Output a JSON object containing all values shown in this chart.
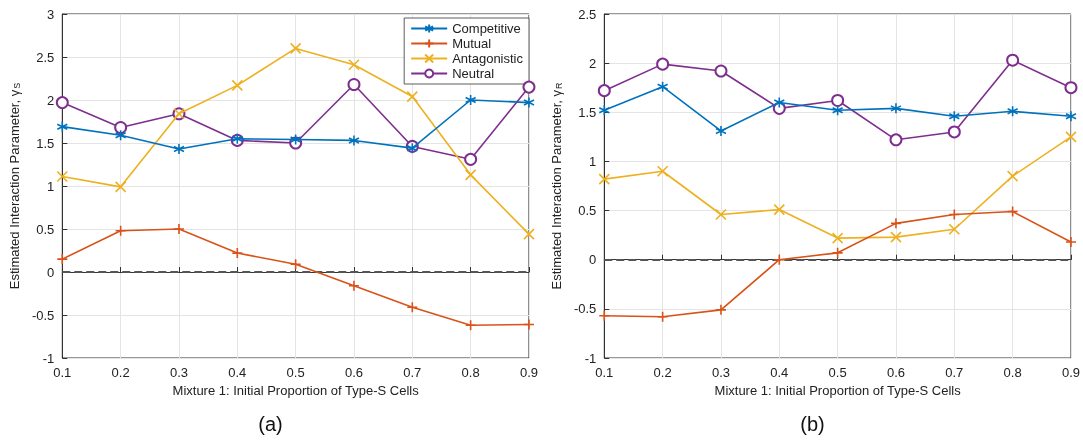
{
  "chart_data": [
    {
      "type": "line",
      "xlabel": "Mixture 1: Initial Proportion of Type-S Cells",
      "ylabel": "Estimated Interaction Parameter, γ$_{S}$",
      "annotations": [
        "(a)"
      ],
      "x": [
        0.1,
        0.2,
        0.3,
        0.4,
        0.5,
        0.6,
        0.7,
        0.8,
        0.9
      ],
      "xlim": [
        0.1,
        0.9
      ],
      "xticks": [
        0.1,
        0.2,
        0.3,
        0.4,
        0.5,
        0.6,
        0.7,
        0.8,
        0.9
      ],
      "ylim": [
        -1,
        3
      ],
      "yticks": [
        -1,
        -0.5,
        0,
        0.5,
        1,
        1.5,
        2,
        2.5,
        3
      ],
      "grid": true,
      "legend": "top right",
      "ref_lines": [
        {
          "axis": "y",
          "value": 0,
          "color": "#555555",
          "line_style": "dashed"
        }
      ],
      "series": [
        {
          "name": "Competitive",
          "color": "#0072bd",
          "marker": "cross",
          "values": [
            1.69,
            1.59,
            1.43,
            1.55,
            1.54,
            1.53,
            1.44,
            2.0,
            1.97
          ]
        },
        {
          "name": "Mutual",
          "color": "#d95319",
          "marker": "plus",
          "values": [
            0.15,
            0.48,
            0.5,
            0.22,
            0.09,
            -0.16,
            -0.41,
            -0.62,
            -0.61
          ]
        },
        {
          "name": "Antagonistic",
          "color": "#edb120",
          "marker": "x",
          "values": [
            1.11,
            0.99,
            1.84,
            2.17,
            2.6,
            2.41,
            2.04,
            1.13,
            0.44
          ]
        },
        {
          "name": "Neutral",
          "color": "#7e2f8e",
          "marker": "circle",
          "values": [
            1.97,
            1.68,
            1.84,
            1.53,
            1.5,
            2.18,
            1.46,
            1.31,
            2.15
          ]
        }
      ]
    },
    {
      "type": "line",
      "xlabel": "Mixture 1: Initial Proportion of Type-S Cells",
      "ylabel": "Estimated Interaction Parameter, γ$_{R}$",
      "annotations": [
        "(b)"
      ],
      "x": [
        0.1,
        0.2,
        0.3,
        0.4,
        0.5,
        0.6,
        0.7,
        0.8,
        0.9
      ],
      "xlim": [
        0.1,
        0.9
      ],
      "xticks": [
        0.1,
        0.2,
        0.3,
        0.4,
        0.5,
        0.6,
        0.7,
        0.8,
        0.9
      ],
      "ylim": [
        -1,
        2.5
      ],
      "yticks": [
        -1,
        -0.5,
        0,
        0.5,
        1,
        1.5,
        2,
        2.5
      ],
      "grid": true,
      "ref_lines": [
        {
          "axis": "y",
          "value": 0,
          "color": "#555555",
          "line_style": "dashed"
        }
      ],
      "series": [
        {
          "color": "#0072bd",
          "marker": "cross",
          "values": [
            1.52,
            1.76,
            1.31,
            1.6,
            1.52,
            1.54,
            1.46,
            1.51,
            1.46
          ]
        },
        {
          "color": "#d95319",
          "marker": "plus",
          "values": [
            -0.57,
            -0.58,
            -0.51,
            0.0,
            0.07,
            0.37,
            0.46,
            0.49,
            0.18
          ]
        },
        {
          "color": "#edb120",
          "marker": "x",
          "values": [
            0.82,
            0.9,
            0.46,
            0.51,
            0.22,
            0.23,
            0.31,
            0.85,
            1.25
          ]
        },
        {
          "color": "#7e2f8e",
          "marker": "circle",
          "values": [
            1.72,
            1.99,
            1.92,
            1.54,
            1.62,
            1.22,
            1.3,
            2.03,
            1.75
          ]
        }
      ]
    }
  ]
}
